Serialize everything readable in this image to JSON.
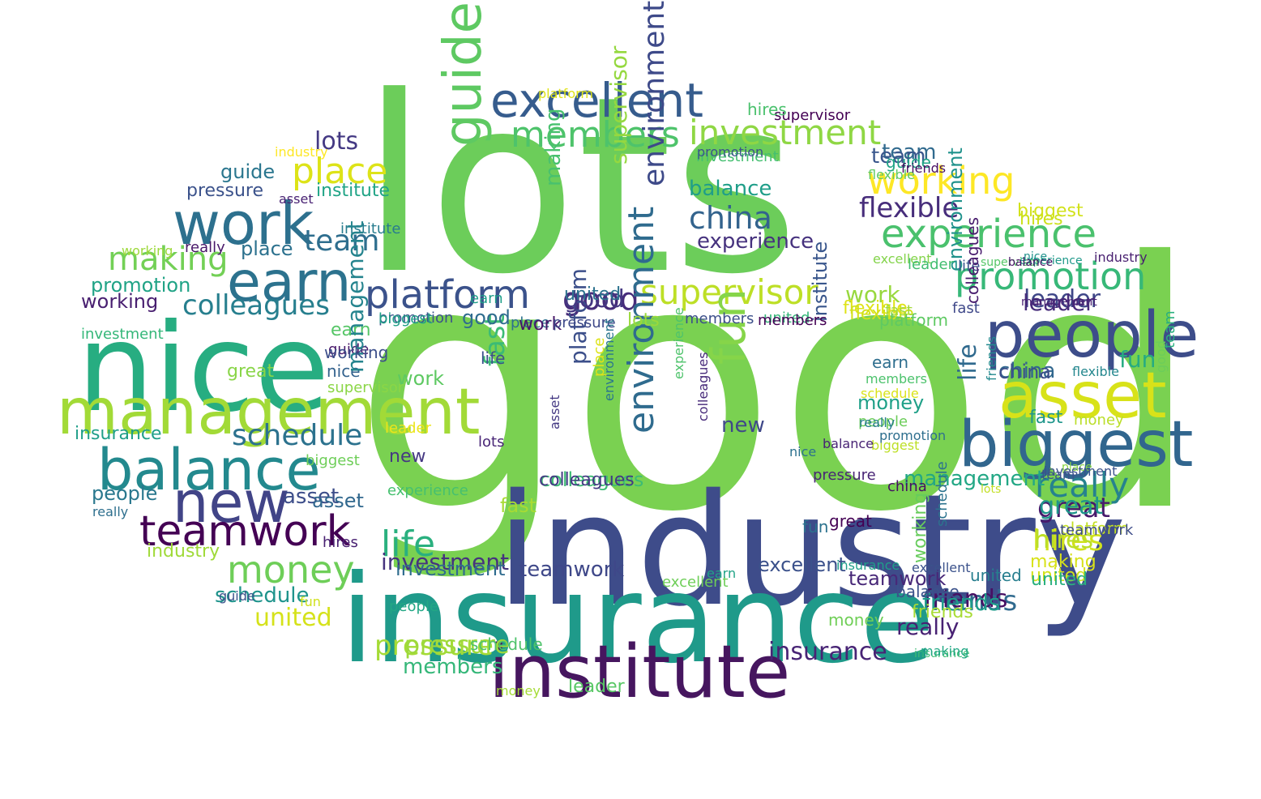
{
  "word_cloud": {
    "words": [
      {
        "text": "good",
        "color": "#7ad151"
      },
      {
        "text": "lots",
        "color": "#6ccd5a"
      },
      {
        "text": "industry",
        "color": "#3e4c8a"
      },
      {
        "text": "insurance",
        "color": "#1f9a8a"
      },
      {
        "text": "nice",
        "color": "#27ad81"
      },
      {
        "text": "institute",
        "color": "#46165f"
      },
      {
        "text": "management",
        "color": "#a2da37"
      },
      {
        "text": "balance",
        "color": "#23898e"
      },
      {
        "text": "earn",
        "color": "#2c728e"
      },
      {
        "text": "work",
        "color": "#2d708e"
      },
      {
        "text": "new",
        "color": "#414487"
      },
      {
        "text": "people",
        "color": "#3d4d8a"
      },
      {
        "text": "asset",
        "color": "#d8e219"
      },
      {
        "text": "biggest",
        "color": "#31668e"
      },
      {
        "text": "excellent",
        "color": "#365c8d"
      },
      {
        "text": "experience",
        "color": "#4ac16d"
      },
      {
        "text": "teamwork",
        "color": "#440154"
      },
      {
        "text": "platform",
        "color": "#3b528b"
      },
      {
        "text": "promotion",
        "color": "#37b878"
      },
      {
        "text": "guide",
        "color": "#5ec962"
      },
      {
        "text": "investment",
        "color": "#8fd744"
      },
      {
        "text": "members",
        "color": "#4ec36b"
      },
      {
        "text": "working",
        "color": "#fde725"
      },
      {
        "text": "place",
        "color": "#dde318"
      },
      {
        "text": "supervisor",
        "color": "#bddf26"
      },
      {
        "text": "money",
        "color": "#6ece58"
      },
      {
        "text": "china",
        "color": "#33638d"
      },
      {
        "text": "schedule",
        "color": "#2c728e"
      },
      {
        "text": "really",
        "color": "#26828e"
      },
      {
        "text": "life",
        "color": "#2ab07f"
      },
      {
        "text": "colleagues",
        "color": "#277f8e"
      },
      {
        "text": "making",
        "color": "#73d056"
      },
      {
        "text": "flexible",
        "color": "#472d7b"
      },
      {
        "text": "fun",
        "color": "#86d549"
      },
      {
        "text": "environment",
        "color": "#3e4a89"
      },
      {
        "text": "great",
        "color": "#481a6c"
      },
      {
        "text": "hires",
        "color": "#d0e11c"
      },
      {
        "text": "pressure",
        "color": "#a5db36"
      },
      {
        "text": "friends",
        "color": "#306a8e"
      },
      {
        "text": "united",
        "color": "#d5e21a"
      },
      {
        "text": "team",
        "color": "#2e6e8e"
      },
      {
        "text": "lots",
        "color": "#443983"
      },
      {
        "text": "fast",
        "color": "#3bbb75"
      },
      {
        "text": "leader",
        "color": "#3f4788"
      },
      {
        "text": "investment",
        "color": "#46337e"
      },
      {
        "text": "members",
        "color": "#35b779"
      },
      {
        "text": "insurance",
        "color": "#482475"
      },
      {
        "text": "really",
        "color": "#482173"
      },
      {
        "text": "working",
        "color": "#481f70"
      },
      {
        "text": "colleagues",
        "color": "#3dbc74"
      },
      {
        "text": "biggest",
        "color": "#d2e21b"
      },
      {
        "text": "guide",
        "color": "#2a768e"
      },
      {
        "text": "pressure",
        "color": "#3b528b"
      },
      {
        "text": "institute",
        "color": "#20a486"
      },
      {
        "text": "team",
        "color": "#306a8e"
      },
      {
        "text": "making",
        "color": "#48c16e"
      },
      {
        "text": "promotion",
        "color": "#20a386"
      },
      {
        "text": "place",
        "color": "#2c718e"
      },
      {
        "text": "people",
        "color": "#2a788e"
      },
      {
        "text": "united",
        "color": "#d2e21b"
      },
      {
        "text": "schedule",
        "color": "#1f948c"
      },
      {
        "text": "insurance",
        "color": "#1f9e89"
      },
      {
        "text": "industry",
        "color": "#a0da39"
      },
      {
        "text": "asset",
        "color": "#3d4e8a"
      },
      {
        "text": "good",
        "color": "#472c7a"
      },
      {
        "text": "fast",
        "color": "#1f968b"
      },
      {
        "text": "work",
        "color": "#98d83e"
      },
      {
        "text": "flexible",
        "color": "#dfe318"
      },
      {
        "text": "leader",
        "color": "#472c7a"
      },
      {
        "text": "great",
        "color": "#1f958b"
      },
      {
        "text": "management",
        "color": "#22a785"
      },
      {
        "text": "environment",
        "color": "#2f6b8e"
      },
      {
        "text": "excellent",
        "color": "#3b518b"
      },
      {
        "text": "balance",
        "color": "#1f9e89"
      },
      {
        "text": "china",
        "color": "#31678e"
      },
      {
        "text": "experience",
        "color": "#46327e"
      },
      {
        "text": "hires",
        "color": "#bade28"
      },
      {
        "text": "making",
        "color": "#d8e219"
      },
      {
        "text": "platform",
        "color": "#3c4f8a"
      },
      {
        "text": "united",
        "color": "#2ab07f"
      },
      {
        "text": "friends",
        "color": "#471063"
      },
      {
        "text": "life",
        "color": "#306a8e"
      },
      {
        "text": "earn",
        "color": "#56c667"
      },
      {
        "text": "work",
        "color": "#5ec962"
      },
      {
        "text": "fun",
        "color": "#25ab82"
      },
      {
        "text": "money",
        "color": "#1fa088"
      },
      {
        "text": "new",
        "color": "#3f4889"
      },
      {
        "text": "nice",
        "color": "#33628d"
      },
      {
        "text": "good",
        "color": "#453781"
      },
      {
        "text": "team",
        "color": "#39568c"
      },
      {
        "text": "members",
        "color": "#4cc26c"
      },
      {
        "text": "guide",
        "color": "#48186a"
      },
      {
        "text": "lots",
        "color": "#9bd93c"
      },
      {
        "text": "pressure",
        "color": "#9dd93b"
      },
      {
        "text": "asset",
        "color": "#31688e"
      },
      {
        "text": "colleagues",
        "color": "#443a83"
      },
      {
        "text": "leader",
        "color": "#58c765"
      },
      {
        "text": "teamwork",
        "color": "#3f4889"
      },
      {
        "text": "friends",
        "color": "#1e9b8a"
      },
      {
        "text": "hires",
        "color": "#cde11d"
      },
      {
        "text": "platform",
        "color": "#c2df23"
      },
      {
        "text": "investment",
        "color": "#2f6c8e"
      },
      {
        "text": "supervisor",
        "color": "#95d840"
      },
      {
        "text": "united",
        "color": "#277e8e"
      },
      {
        "text": "teamwork",
        "color": "#482878"
      },
      {
        "text": "environment",
        "color": "#20928c"
      },
      {
        "text": "working",
        "color": "#67cc5c"
      },
      {
        "text": "promotion",
        "color": "#3b528b"
      },
      {
        "text": "china",
        "color": "#3c4f8a"
      },
      {
        "text": "great",
        "color": "#89d548"
      },
      {
        "text": "people",
        "color": "#6ccd5a"
      },
      {
        "text": "money",
        "color": "#70cf57"
      },
      {
        "text": "investment",
        "color": "#44bf70"
      },
      {
        "text": "friends",
        "color": "#a8db34"
      },
      {
        "text": "supervisor",
        "color": "#440154"
      },
      {
        "text": "really",
        "color": "#2e6f8e"
      },
      {
        "text": "asset",
        "color": "#482173"
      },
      {
        "text": "insurance",
        "color": "#3fbc73"
      },
      {
        "text": "institute",
        "color": "#39568c"
      },
      {
        "text": "good",
        "color": "#2f6c8e"
      },
      {
        "text": "fast",
        "color": "#a8db34"
      },
      {
        "text": "really",
        "color": "#481769"
      },
      {
        "text": "institute",
        "color": "#287c8e"
      },
      {
        "text": "life",
        "color": "#3c508b"
      },
      {
        "text": "excellent",
        "color": "#6ece58"
      },
      {
        "text": "money",
        "color": "#bade28"
      },
      {
        "text": "place",
        "color": "#2d708e"
      },
      {
        "text": "flexible",
        "color": "#d2e21b"
      },
      {
        "text": "life",
        "color": "#3b528b"
      },
      {
        "text": "great",
        "color": "#440154"
      },
      {
        "text": "colleagues",
        "color": "#481b6d"
      },
      {
        "text": "fun",
        "color": "#2c728e"
      },
      {
        "text": "investment",
        "color": "#35b779"
      },
      {
        "text": "management",
        "color": "#25848e"
      },
      {
        "text": "team",
        "color": "#2ab07f"
      },
      {
        "text": "promotion",
        "color": "#3b528b"
      },
      {
        "text": "fast",
        "color": "#a2da37"
      },
      {
        "text": "earn",
        "color": "#2e6e8e"
      },
      {
        "text": "biggest",
        "color": "#1fa088"
      },
      {
        "text": "nice",
        "color": "#2c718e"
      },
      {
        "text": "guide",
        "color": "#3b528b"
      },
      {
        "text": "new",
        "color": "#453882"
      },
      {
        "text": "working",
        "color": "#3c4f8a"
      },
      {
        "text": "lots",
        "color": "#482576"
      },
      {
        "text": "place",
        "color": "#8bd646"
      },
      {
        "text": "biggest",
        "color": "#6ece58"
      },
      {
        "text": "work",
        "color": "#481769"
      },
      {
        "text": "experience",
        "color": "#46c06f"
      },
      {
        "text": "pressure",
        "color": "#3e4989"
      },
      {
        "text": "united",
        "color": "#35b779"
      },
      {
        "text": "nice",
        "color": "#20928c"
      },
      {
        "text": "balance",
        "color": "#3b528b"
      },
      {
        "text": "supervisor",
        "color": "#8bd646"
      },
      {
        "text": "schedule",
        "color": "#4ec36b"
      },
      {
        "text": "members",
        "color": "#440154"
      },
      {
        "text": "leader",
        "color": "#ece51b"
      },
      {
        "text": "people",
        "color": "#22a785"
      },
      {
        "text": "environment",
        "color": "#2a768e"
      },
      {
        "text": "members",
        "color": "#3c4f8a"
      },
      {
        "text": "schedule",
        "color": "#dae319"
      },
      {
        "text": "hires",
        "color": "#482071"
      },
      {
        "text": "flexible",
        "color": "#24878e"
      },
      {
        "text": "really",
        "color": "#287d8e"
      },
      {
        "text": "good",
        "color": "#6ccd5a"
      },
      {
        "text": "insurance",
        "color": "#1f9e89"
      },
      {
        "text": "platform",
        "color": "#5ec962"
      },
      {
        "text": "fast",
        "color": "#3f4889"
      },
      {
        "text": "industry",
        "color": "#fde725"
      },
      {
        "text": "excellent",
        "color": "#84d44b"
      },
      {
        "text": "china",
        "color": "#471063"
      },
      {
        "text": "friends",
        "color": "#23898e"
      },
      {
        "text": "making",
        "color": "#22a884"
      },
      {
        "text": "earn",
        "color": "#20a386"
      },
      {
        "text": "supervisor",
        "color": "#56c667"
      },
      {
        "text": "team",
        "color": "#3b528b"
      },
      {
        "text": "fun",
        "color": "#d0e11c"
      },
      {
        "text": "biggest",
        "color": "#bddf26"
      },
      {
        "text": "colleagues",
        "color": "#472a7a"
      },
      {
        "text": "balance",
        "color": "#482374"
      },
      {
        "text": "asset",
        "color": "#443983"
      },
      {
        "text": "working",
        "color": "#9dd93b"
      },
      {
        "text": "experience",
        "color": "#1f998a"
      },
      {
        "text": "lots",
        "color": "#c2df23"
      },
      {
        "text": "money",
        "color": "#a5db36"
      },
      {
        "text": "place",
        "color": "#dde318"
      },
      {
        "text": "industry",
        "color": "#481f70"
      },
      {
        "text": "guide",
        "color": "#20a486"
      },
      {
        "text": "leader",
        "color": "#42be71"
      },
      {
        "text": "teamwork",
        "color": "#3e4c8a"
      },
      {
        "text": "hires",
        "color": "#4ac16d"
      },
      {
        "text": "investment",
        "color": "#3b528b"
      },
      {
        "text": "united",
        "color": "#2c728e"
      },
      {
        "text": "promotion",
        "color": "#2e6f8e"
      },
      {
        "text": "management",
        "color": "#482173"
      },
      {
        "text": "platform",
        "color": "#dfe318"
      },
      {
        "text": "flexible",
        "color": "#5ec962"
      },
      {
        "text": "schedule",
        "color": "#2c738e"
      },
      {
        "text": "excellent",
        "color": "#3b528b"
      },
      {
        "text": "pressure",
        "color": "#482475"
      },
      {
        "text": "friends",
        "color": "#471063"
      },
      {
        "text": "earn",
        "color": "#1f9e89"
      },
      {
        "text": "balance",
        "color": "#471365"
      },
      {
        "text": "experience",
        "color": "#4ec36b"
      }
    ]
  }
}
